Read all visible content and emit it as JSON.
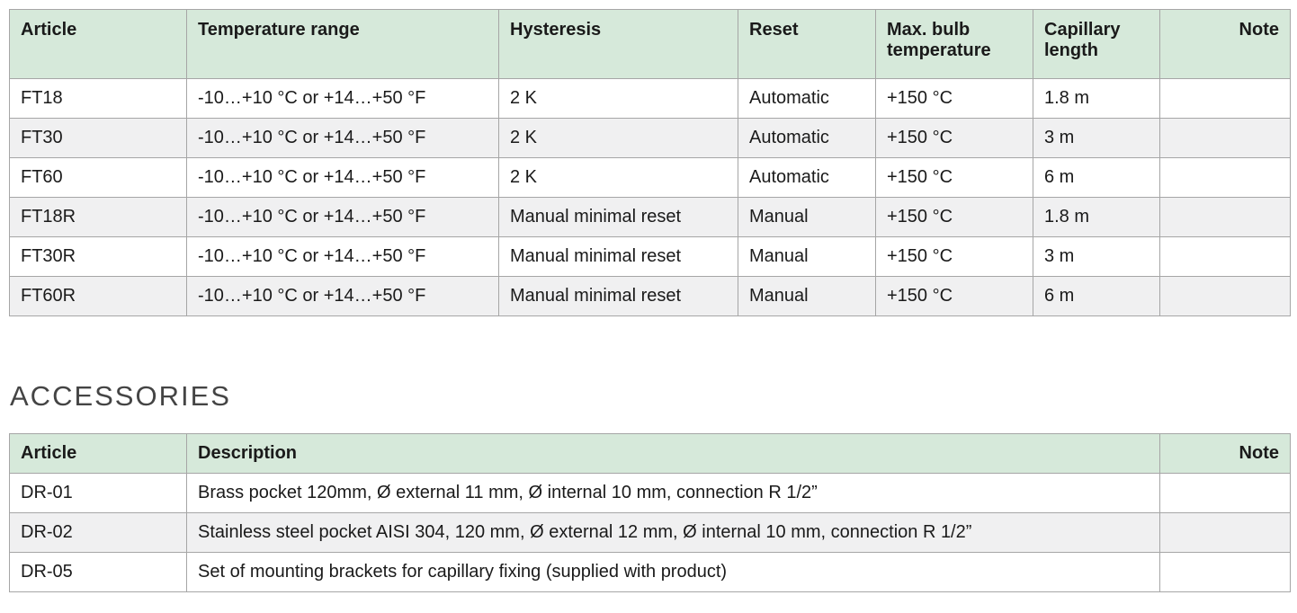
{
  "colors": {
    "header_bg": "#d6e9da",
    "row_alt_bg": "#f0f0f1",
    "border": "#a6a6a6",
    "text": "#1a1a1a"
  },
  "products_table": {
    "columns": [
      "Article",
      "Temperature range",
      "Hysteresis",
      "Reset",
      "Max. bulb temperature",
      "Capillary length",
      "Note"
    ],
    "rows": [
      [
        "FT18",
        "-10…+10 °C or +14…+50 °F",
        "2 K",
        "Automatic",
        "+150 °C",
        "1.8 m",
        ""
      ],
      [
        "FT30",
        "-10…+10 °C or +14…+50 °F",
        "2 K",
        "Automatic",
        "+150 °C",
        "3 m",
        ""
      ],
      [
        "FT60",
        "-10…+10 °C or +14…+50 °F",
        "2 K",
        "Automatic",
        "+150 °C",
        "6 m",
        ""
      ],
      [
        "FT18R",
        "-10…+10 °C or +14…+50 °F",
        "Manual minimal reset",
        "Manual",
        "+150 °C",
        "1.8 m",
        ""
      ],
      [
        "FT30R",
        "-10…+10 °C or +14…+50 °F",
        "Manual minimal reset",
        "Manual",
        "+150 °C",
        "3 m",
        ""
      ],
      [
        "FT60R",
        "-10…+10 °C or +14…+50 °F",
        "Manual minimal reset",
        "Manual",
        "+150 °C",
        "6 m",
        ""
      ]
    ]
  },
  "accessories_section": {
    "heading": "ACCESSORIES",
    "table": {
      "columns": [
        "Article",
        "Description",
        "Note"
      ],
      "rows": [
        [
          "DR-01",
          "Brass pocket 120mm, Ø external 11 mm, Ø internal 10 mm, connection R 1/2”",
          ""
        ],
        [
          "DR-02",
          "Stainless steel pocket AISI 304, 120 mm, Ø external 12 mm, Ø internal 10 mm, connection R 1/2”",
          ""
        ],
        [
          "DR-05",
          "Set of mounting brackets for capillary fixing (supplied with product)",
          ""
        ]
      ]
    }
  }
}
